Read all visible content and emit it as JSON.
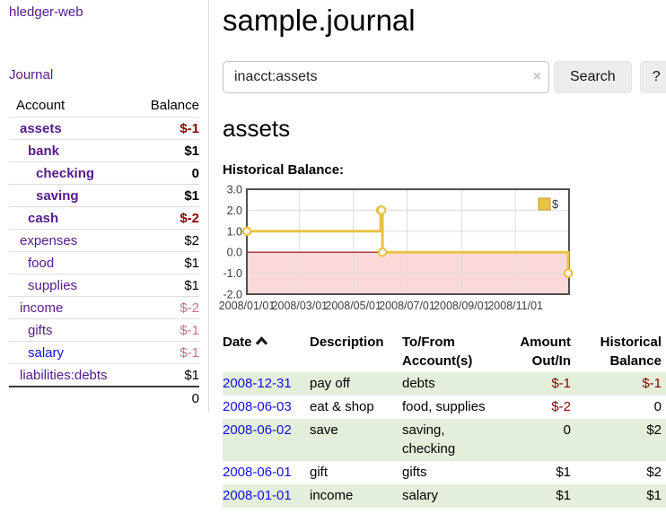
{
  "app": {
    "brand": "hledger-web"
  },
  "colors": {
    "link_purple": "#551a8b",
    "link_blue": "#1111dd",
    "negative": "#8b0000",
    "negative_muted": "#c2767c",
    "row_stripe_green": "#e4efdb",
    "chart_line_gold": "#e9c246",
    "chart_negative_region": "#fcd9d9",
    "chart_zero_line": "#990000"
  },
  "sidebar": {
    "journal_link": "Journal",
    "accounts_header": {
      "account": "Account",
      "balance": "Balance"
    },
    "accounts": [
      {
        "name": "assets",
        "level": 1,
        "bold": true,
        "balance": "$-1",
        "balance_style": "negative",
        "link_style": "purple"
      },
      {
        "name": "bank",
        "level": 2,
        "bold": true,
        "balance": "$1",
        "balance_style": "normal",
        "link_style": "purple"
      },
      {
        "name": "checking",
        "level": 3,
        "bold": true,
        "balance": "0",
        "balance_style": "normal",
        "link_style": "purple"
      },
      {
        "name": "saving",
        "level": 3,
        "bold": true,
        "balance": "$1",
        "balance_style": "normal",
        "link_style": "purple"
      },
      {
        "name": "cash",
        "level": 2,
        "bold": true,
        "balance": "$-2",
        "balance_style": "negative",
        "link_style": "purple"
      },
      {
        "name": "expenses",
        "level": 1,
        "bold": false,
        "balance": "$2",
        "balance_style": "normal",
        "link_style": "purple"
      },
      {
        "name": "food",
        "level": 2,
        "bold": false,
        "balance": "$1",
        "balance_style": "normal",
        "link_style": "purple"
      },
      {
        "name": "supplies",
        "level": 2,
        "bold": false,
        "balance": "$1",
        "balance_style": "normal",
        "link_style": "purple"
      },
      {
        "name": "income",
        "level": 1,
        "bold": false,
        "balance": "$-2",
        "balance_style": "negative-muted",
        "link_style": "purple"
      },
      {
        "name": "gifts",
        "level": 2,
        "bold": false,
        "balance": "$-1",
        "balance_style": "negative-muted",
        "link_style": "purple"
      },
      {
        "name": "salary",
        "level": 2,
        "bold": false,
        "balance": "$-1",
        "balance_style": "negative-muted",
        "link_style": "blue"
      },
      {
        "name": "liabilities:debts",
        "level": 1,
        "bold": false,
        "balance": "$1",
        "balance_style": "normal",
        "link_style": "purple"
      }
    ],
    "total": "0"
  },
  "header": {
    "title": "sample.journal"
  },
  "search": {
    "value": "inacct:assets",
    "clear_icon": "×",
    "button": "Search",
    "help_button": "?"
  },
  "account_page": {
    "title": "assets",
    "chart_label": "Historical Balance:"
  },
  "chart_data": {
    "type": "line",
    "title": "Historical Balance:",
    "style": "steps",
    "series": [
      {
        "name": "$",
        "color": "#e9c246",
        "points": [
          [
            "2008-01-01",
            1
          ],
          [
            "2008-06-01",
            2
          ],
          [
            "2008-06-02",
            2
          ],
          [
            "2008-06-03",
            0
          ],
          [
            "2008-12-31",
            -1
          ]
        ]
      }
    ],
    "x_ticks": [
      "2008/01/01",
      "2008/03/01",
      "2008/05/01",
      "2008/07/01",
      "2008/09/01",
      "2008/11/01"
    ],
    "y_ticks": [
      3,
      2,
      1,
      0,
      -1,
      -2
    ],
    "ylim": [
      -2,
      3
    ],
    "xlim": [
      "2008-01-01",
      "2009-01-01"
    ],
    "grid": true,
    "negative_region_color": "#fcd9d9",
    "zero_line_color": "#990000",
    "legend": {
      "position": "top-right",
      "label": "$"
    }
  },
  "register": {
    "columns": [
      {
        "label": "Date",
        "sort": "ascending"
      },
      {
        "label": "Description"
      },
      {
        "label": "To/From Account(s)"
      },
      {
        "label": "Amount Out/In"
      },
      {
        "label": "Historical Balance"
      }
    ],
    "rows": [
      {
        "date": "2008-12-31",
        "description": "pay off",
        "accounts": "debts",
        "amount": "$-1",
        "amount_negative": true,
        "balance": "$-1",
        "balance_negative": true
      },
      {
        "date": "2008-06-03",
        "description": "eat & shop",
        "accounts": "food, supplies",
        "amount": "$-2",
        "amount_negative": true,
        "balance": "0",
        "balance_negative": false
      },
      {
        "date": "2008-06-02",
        "description": "save",
        "accounts": "saving, checking",
        "amount": "0",
        "amount_negative": false,
        "balance": "$2",
        "balance_negative": false
      },
      {
        "date": "2008-06-01",
        "description": "gift",
        "accounts": "gifts",
        "amount": "$1",
        "amount_negative": false,
        "balance": "$2",
        "balance_negative": false
      },
      {
        "date": "2008-01-01",
        "description": "income",
        "accounts": "salary",
        "amount": "$1",
        "amount_negative": false,
        "balance": "$1",
        "balance_negative": false
      }
    ]
  }
}
